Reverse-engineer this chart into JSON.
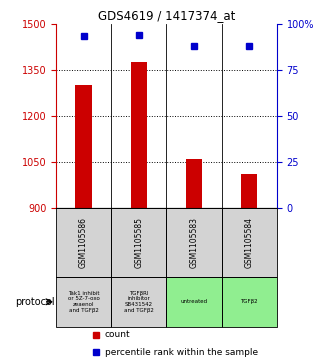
{
  "title": "GDS4619 / 1417374_at",
  "samples": [
    "GSM1105586",
    "GSM1105585",
    "GSM1105583",
    "GSM1105584"
  ],
  "counts": [
    1300,
    1375,
    1060,
    1010
  ],
  "percentiles": [
    93,
    94,
    88,
    88
  ],
  "ylim_left": [
    900,
    1500
  ],
  "ylim_right": [
    0,
    100
  ],
  "yticks_left": [
    900,
    1050,
    1200,
    1350,
    1500
  ],
  "yticks_right": [
    0,
    25,
    50,
    75,
    100
  ],
  "bar_color": "#cc0000",
  "marker_color": "#0000cc",
  "protocol_labels": [
    "Tak1 inhibit\nor 5Z-7-oxo\nzeaenol\nand TGFβ2",
    "TGFβRI\ninhibitor\nSB431542\nand TGFβ2",
    "untreated",
    "TGFβ2"
  ],
  "protocol_colors": [
    "#d3d3d3",
    "#d3d3d3",
    "#90ee90",
    "#90ee90"
  ],
  "legend_count_color": "#cc0000",
  "legend_percentile_color": "#0000cc",
  "left_axis_color": "#cc0000",
  "right_axis_color": "#0000cc",
  "grid_color": "#000000",
  "background_color": "#ffffff",
  "sample_box_color": "#d3d3d3"
}
